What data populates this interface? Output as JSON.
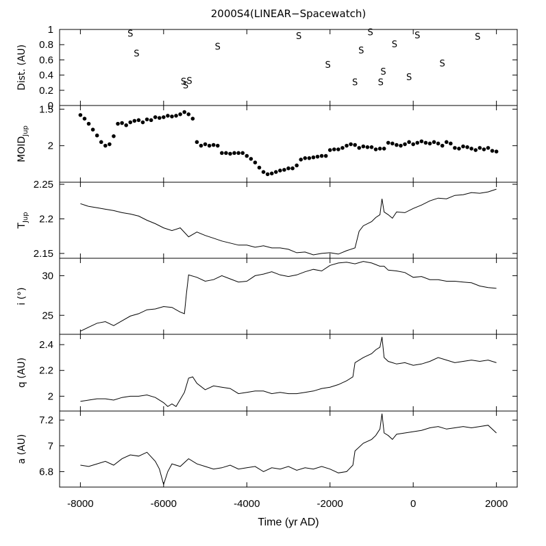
{
  "chart_data": {
    "type": "multi-panel",
    "title": "2000S4(LINEAR−Spacewatch)",
    "xlabel": "Time (yr AD)",
    "xlim": [
      -8500,
      2500
    ],
    "xticks": [
      -8000,
      -6000,
      -4000,
      -2000,
      0,
      2000
    ],
    "xtick_labels": [
      "-8000",
      "-6000",
      "-4000",
      "-2000",
      "0",
      "2000"
    ],
    "panels": [
      {
        "id": "dist",
        "ylabel": "Dist. (AU)",
        "ylim": [
          0,
          1
        ],
        "yticks": [
          0,
          0.2,
          0.4,
          0.6,
          0.8,
          1
        ],
        "ytick_labels": [
          "0",
          "0.2",
          "0.4",
          "0.6",
          "0.8",
          "1"
        ],
        "type": "marker-text",
        "marker": "S",
        "points": [
          {
            "x": -6800,
            "y": 0.95
          },
          {
            "x": -6650,
            "y": 0.69
          },
          {
            "x": -5520,
            "y": 0.32
          },
          {
            "x": -5380,
            "y": 0.33
          },
          {
            "x": -5470,
            "y": 0.27
          },
          {
            "x": -4700,
            "y": 0.78
          },
          {
            "x": -2750,
            "y": 0.92
          },
          {
            "x": -2050,
            "y": 0.54
          },
          {
            "x": -1400,
            "y": 0.31
          },
          {
            "x": -1250,
            "y": 0.73
          },
          {
            "x": -1030,
            "y": 0.97
          },
          {
            "x": -780,
            "y": 0.31
          },
          {
            "x": -720,
            "y": 0.45
          },
          {
            "x": -450,
            "y": 0.81
          },
          {
            "x": -100,
            "y": 0.38
          },
          {
            "x": 100,
            "y": 0.93
          },
          {
            "x": 700,
            "y": 0.56
          },
          {
            "x": 1550,
            "y": 0.91
          }
        ]
      },
      {
        "id": "moid",
        "ylabel": "MOID",
        "ylabel_sub": "Jup",
        "ylim": [
          1.45,
          2.5
        ],
        "yticks": [
          1.5,
          2
        ],
        "ytick_labels": [
          "1.5",
          "2"
        ],
        "inverted": true,
        "type": "dots",
        "x": [
          -8000,
          -7900,
          -7800,
          -7700,
          -7600,
          -7500,
          -7400,
          -7300,
          -7200,
          -7100,
          -7000,
          -6900,
          -6800,
          -6700,
          -6600,
          -6500,
          -6400,
          -6300,
          -6200,
          -6100,
          -6000,
          -5900,
          -5800,
          -5700,
          -5600,
          -5500,
          -5400,
          -5300,
          -5200,
          -5100,
          -5000,
          -4900,
          -4800,
          -4700,
          -4600,
          -4500,
          -4400,
          -4300,
          -4200,
          -4100,
          -4000,
          -3900,
          -3800,
          -3700,
          -3600,
          -3500,
          -3400,
          -3300,
          -3200,
          -3100,
          -3000,
          -2900,
          -2800,
          -2700,
          -2600,
          -2500,
          -2400,
          -2300,
          -2200,
          -2100,
          -2000,
          -1900,
          -1800,
          -1700,
          -1600,
          -1500,
          -1400,
          -1300,
          -1200,
          -1100,
          -1000,
          -900,
          -800,
          -700,
          -600,
          -500,
          -400,
          -300,
          -200,
          -100,
          0,
          100,
          200,
          300,
          400,
          500,
          600,
          700,
          800,
          900,
          1000,
          1100,
          1200,
          1300,
          1400,
          1500,
          1600,
          1700,
          1800,
          1900,
          2000
        ],
        "y": [
          1.58,
          1.63,
          1.7,
          1.78,
          1.86,
          1.95,
          2.0,
          1.98,
          1.87,
          1.7,
          1.69,
          1.72,
          1.68,
          1.66,
          1.65,
          1.68,
          1.64,
          1.65,
          1.61,
          1.62,
          1.61,
          1.59,
          1.6,
          1.59,
          1.57,
          1.54,
          1.57,
          1.63,
          1.95,
          2.0,
          1.98,
          2.0,
          1.99,
          2.0,
          2.1,
          2.1,
          2.11,
          2.1,
          2.1,
          2.1,
          2.14,
          2.18,
          2.23,
          2.3,
          2.36,
          2.39,
          2.38,
          2.36,
          2.34,
          2.33,
          2.31,
          2.31,
          2.27,
          2.19,
          2.17,
          2.17,
          2.16,
          2.15,
          2.14,
          2.14,
          2.06,
          2.05,
          2.05,
          2.03,
          2.0,
          1.98,
          1.99,
          2.03,
          2.01,
          2.02,
          2.02,
          2.05,
          2.04,
          2.04,
          1.96,
          1.97,
          1.99,
          2.0,
          1.98,
          1.95,
          1.98,
          1.96,
          1.94,
          1.96,
          1.97,
          1.95,
          1.97,
          2.0,
          1.95,
          1.97,
          2.03,
          2.04,
          2.01,
          2.02,
          2.04,
          2.06,
          2.03,
          2.05,
          2.03,
          2.07,
          2.08
        ]
      },
      {
        "id": "tjup",
        "ylabel": "T",
        "ylabel_sub": "Jup",
        "ylim": [
          2.143,
          2.253
        ],
        "yticks": [
          2.15,
          2.2,
          2.25
        ],
        "ytick_labels": [
          "2.15",
          "2.2",
          "2.25"
        ],
        "type": "line",
        "x": [
          -8000,
          -7800,
          -7600,
          -7400,
          -7200,
          -7000,
          -6800,
          -6600,
          -6400,
          -6200,
          -6000,
          -5800,
          -5600,
          -5400,
          -5200,
          -5000,
          -4800,
          -4600,
          -4400,
          -4200,
          -4000,
          -3800,
          -3600,
          -3400,
          -3200,
          -3000,
          -2800,
          -2600,
          -2400,
          -2200,
          -2000,
          -1800,
          -1600,
          -1400,
          -1300,
          -1200,
          -1000,
          -900,
          -800,
          -750,
          -700,
          -600,
          -500,
          -400,
          -200,
          0,
          200,
          400,
          600,
          800,
          1000,
          1200,
          1400,
          1600,
          1800,
          2000
        ],
        "y": [
          2.222,
          2.218,
          2.216,
          2.214,
          2.212,
          2.209,
          2.207,
          2.204,
          2.198,
          2.193,
          2.187,
          2.183,
          2.187,
          2.174,
          2.181,
          2.176,
          2.172,
          2.168,
          2.165,
          2.162,
          2.162,
          2.159,
          2.161,
          2.158,
          2.158,
          2.156,
          2.151,
          2.152,
          2.148,
          2.15,
          2.151,
          2.149,
          2.154,
          2.158,
          2.182,
          2.19,
          2.196,
          2.202,
          2.206,
          2.229,
          2.21,
          2.206,
          2.201,
          2.21,
          2.209,
          2.215,
          2.22,
          2.226,
          2.23,
          2.229,
          2.234,
          2.235,
          2.238,
          2.237,
          2.239,
          2.243
        ]
      },
      {
        "id": "incl",
        "ylabel": "i (°)",
        "ylim": [
          22.6,
          32.2
        ],
        "yticks": [
          25,
          30
        ],
        "ytick_labels": [
          "25",
          "30"
        ],
        "type": "line",
        "x": [
          -8000,
          -7800,
          -7600,
          -7400,
          -7200,
          -7000,
          -6800,
          -6600,
          -6400,
          -6200,
          -6000,
          -5800,
          -5600,
          -5500,
          -5450,
          -5400,
          -5200,
          -5000,
          -4800,
          -4600,
          -4400,
          -4200,
          -4000,
          -3800,
          -3600,
          -3400,
          -3200,
          -3000,
          -2800,
          -2600,
          -2400,
          -2200,
          -2000,
          -1800,
          -1600,
          -1400,
          -1200,
          -1000,
          -800,
          -700,
          -600,
          -400,
          -200,
          0,
          200,
          400,
          600,
          800,
          1000,
          1200,
          1400,
          1600,
          1800,
          2000
        ],
        "y": [
          23.0,
          23.5,
          24.0,
          24.2,
          23.7,
          24.3,
          24.9,
          25.2,
          25.7,
          25.8,
          26.1,
          26.0,
          25.4,
          25.2,
          27.8,
          30.1,
          29.8,
          29.3,
          29.5,
          30.0,
          29.6,
          29.2,
          29.3,
          30.0,
          30.2,
          30.5,
          30.1,
          29.9,
          30.1,
          30.5,
          30.8,
          30.6,
          31.3,
          31.6,
          31.7,
          31.5,
          31.8,
          31.6,
          31.2,
          31.2,
          30.7,
          30.6,
          30.4,
          29.8,
          29.9,
          29.5,
          29.5,
          29.3,
          29.3,
          29.2,
          29.1,
          28.7,
          28.5,
          28.4
        ]
      },
      {
        "id": "q",
        "ylabel": "q (AU)",
        "ylim": [
          1.885,
          2.48
        ],
        "yticks": [
          2,
          2.2,
          2.4
        ],
        "ytick_labels": [
          "2",
          "2.2",
          "2.4"
        ],
        "type": "line",
        "x": [
          -8000,
          -7800,
          -7600,
          -7400,
          -7200,
          -7000,
          -6800,
          -6600,
          -6400,
          -6200,
          -6000,
          -5900,
          -5800,
          -5700,
          -5500,
          -5400,
          -5300,
          -5200,
          -5000,
          -4800,
          -4600,
          -4400,
          -4200,
          -4000,
          -3800,
          -3600,
          -3400,
          -3200,
          -3000,
          -2800,
          -2600,
          -2400,
          -2200,
          -2000,
          -1800,
          -1600,
          -1450,
          -1400,
          -1200,
          -1000,
          -900,
          -800,
          -750,
          -700,
          -600,
          -500,
          -400,
          -200,
          0,
          200,
          400,
          600,
          800,
          1000,
          1200,
          1400,
          1600,
          1800,
          2000
        ],
        "y": [
          1.96,
          1.97,
          1.98,
          1.98,
          1.97,
          1.99,
          2.0,
          2.0,
          2.01,
          1.99,
          1.95,
          1.92,
          1.94,
          1.92,
          2.03,
          2.14,
          2.15,
          2.1,
          2.05,
          2.08,
          2.07,
          2.06,
          2.02,
          2.03,
          2.04,
          2.04,
          2.02,
          2.03,
          2.02,
          2.02,
          2.03,
          2.04,
          2.06,
          2.07,
          2.09,
          2.12,
          2.15,
          2.26,
          2.3,
          2.33,
          2.36,
          2.38,
          2.46,
          2.3,
          2.27,
          2.26,
          2.25,
          2.26,
          2.24,
          2.25,
          2.27,
          2.3,
          2.28,
          2.26,
          2.27,
          2.28,
          2.27,
          2.28,
          2.26
        ]
      },
      {
        "id": "a",
        "ylabel": "a (AU)",
        "ylim": [
          6.68,
          7.27
        ],
        "yticks": [
          6.8,
          7,
          7.2
        ],
        "ytick_labels": [
          "6.8",
          "7",
          "7.2"
        ],
        "type": "line",
        "x": [
          -8000,
          -7800,
          -7600,
          -7400,
          -7200,
          -7000,
          -6800,
          -6600,
          -6400,
          -6200,
          -6100,
          -6000,
          -5900,
          -5800,
          -5600,
          -5400,
          -5200,
          -5000,
          -4800,
          -4600,
          -4400,
          -4200,
          -4000,
          -3800,
          -3600,
          -3400,
          -3200,
          -3000,
          -2800,
          -2600,
          -2400,
          -2200,
          -2000,
          -1800,
          -1600,
          -1450,
          -1400,
          -1200,
          -1000,
          -900,
          -800,
          -750,
          -700,
          -600,
          -500,
          -400,
          -200,
          0,
          200,
          400,
          600,
          800,
          1000,
          1200,
          1400,
          1600,
          1800,
          2000
        ],
        "y": [
          6.85,
          6.84,
          6.86,
          6.88,
          6.85,
          6.9,
          6.93,
          6.92,
          6.95,
          6.88,
          6.82,
          6.7,
          6.8,
          6.86,
          6.84,
          6.9,
          6.86,
          6.84,
          6.82,
          6.83,
          6.85,
          6.82,
          6.83,
          6.84,
          6.8,
          6.83,
          6.82,
          6.84,
          6.81,
          6.83,
          6.82,
          6.84,
          6.82,
          6.79,
          6.8,
          6.85,
          6.96,
          7.02,
          7.05,
          7.08,
          7.13,
          7.25,
          7.1,
          7.08,
          7.05,
          7.09,
          7.1,
          7.11,
          7.12,
          7.14,
          7.15,
          7.13,
          7.14,
          7.15,
          7.14,
          7.15,
          7.16,
          7.1
        ]
      }
    ]
  }
}
